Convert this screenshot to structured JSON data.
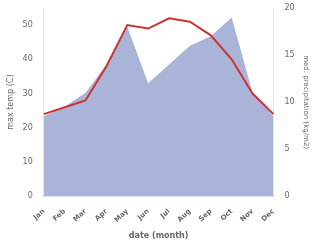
{
  "chart_data": {
    "type": "line",
    "xlabel": "date (month)",
    "ylabel": "max temp (C)",
    "y2label": "med. precipitation (kg/m2)",
    "categories": [
      "Jan",
      "Feb",
      "Mar",
      "Apr",
      "May",
      "Jun",
      "Jul",
      "Aug",
      "Sep",
      "Oct",
      "Nov",
      "Dec"
    ],
    "series": [
      {
        "type": "area",
        "color": "#aab4d8",
        "axis": "y2",
        "values": [
          8.5,
          9.5,
          11,
          14,
          18,
          12,
          14,
          16,
          17,
          19,
          11,
          8.5
        ]
      },
      {
        "type": "line",
        "color": "#cc3333",
        "values": [
          24,
          26,
          28,
          38,
          50,
          49,
          52,
          51,
          47,
          40,
          30,
          24
        ]
      }
    ],
    "ylim": [
      0,
      55
    ],
    "yticks": [
      0,
      10,
      20,
      30,
      40,
      50
    ],
    "y2lim": [
      0,
      20
    ],
    "y2ticks": [
      0,
      5,
      10,
      15,
      20
    ],
    "grid": false
  }
}
